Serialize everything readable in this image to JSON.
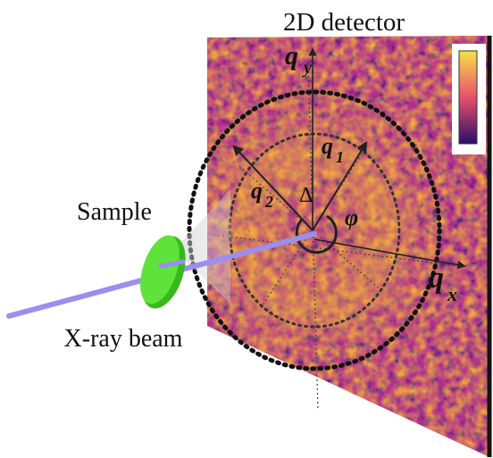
{
  "title": "2D detector",
  "labels": {
    "sample": "Sample",
    "beam": "X-ray beam",
    "qy": "q",
    "qy_sub": "y",
    "qx": "q",
    "qx_sub": "x",
    "q1": "q",
    "q1_sub": "1",
    "q2": "q",
    "q2_sub": "2",
    "delta": "Δ",
    "phi": "φ"
  },
  "colors": {
    "beam": "#9a8ef0",
    "sample": "#5fe23a",
    "sample_edge": "#37b81c",
    "detector_base": "#b0308f",
    "colorbar_top": "#f5e04a",
    "colorbar_mid": "#e8506a",
    "colorbar_bottom": "#2a0e6a"
  }
}
